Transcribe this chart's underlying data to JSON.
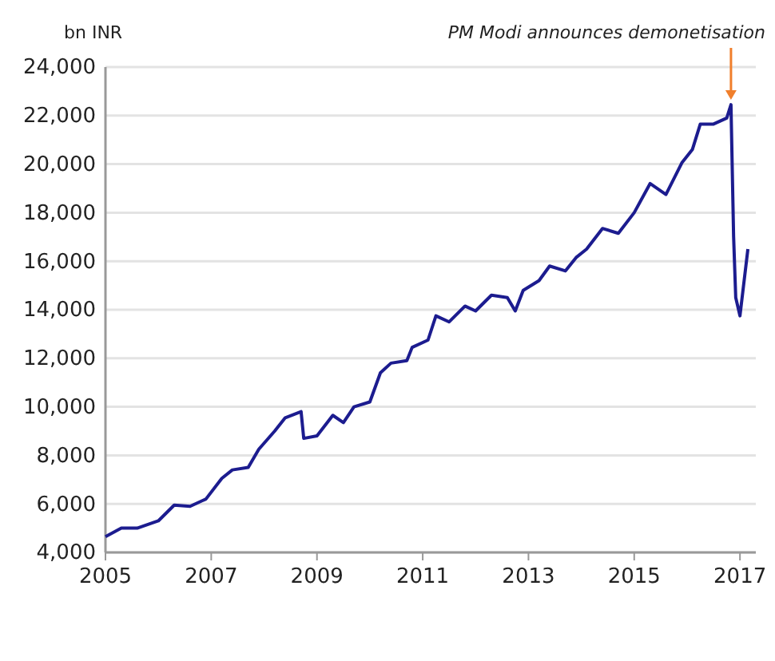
{
  "chart_data": {
    "type": "line",
    "ylabel": "bn INR",
    "annotations": [
      {
        "text": "PM Modi announces demonetisation",
        "x": 2016.83,
        "y": 22450
      }
    ],
    "x": [
      2005.0,
      2005.3,
      2005.6,
      2006.0,
      2006.3,
      2006.6,
      2006.9,
      2007.2,
      2007.4,
      2007.7,
      2007.9,
      2008.2,
      2008.4,
      2008.7,
      2008.75,
      2009.0,
      2009.3,
      2009.5,
      2009.7,
      2010.0,
      2010.2,
      2010.4,
      2010.7,
      2010.8,
      2011.1,
      2011.25,
      2011.5,
      2011.8,
      2012.0,
      2012.3,
      2012.6,
      2012.75,
      2012.9,
      2013.2,
      2013.4,
      2013.7,
      2013.9,
      2014.1,
      2014.4,
      2014.7,
      2015.0,
      2015.3,
      2015.6,
      2015.9,
      2016.1,
      2016.25,
      2016.5,
      2016.75,
      2016.83,
      2016.88,
      2016.92,
      2017.0,
      2017.15
    ],
    "series": [
      {
        "color": "#1c1c8f",
        "values": [
          4650,
          5000,
          5000,
          5300,
          5950,
          5900,
          6200,
          7050,
          7400,
          7500,
          8250,
          9000,
          9550,
          9800,
          8700,
          8800,
          9650,
          9350,
          10000,
          10200,
          11400,
          11800,
          11900,
          12450,
          12750,
          13750,
          13500,
          14150,
          13950,
          14600,
          14500,
          13950,
          14800,
          15200,
          15800,
          15600,
          16150,
          16500,
          17350,
          17150,
          18000,
          19200,
          18750,
          20050,
          20600,
          21650,
          21650,
          21900,
          22450,
          17000,
          14500,
          13750,
          16500
        ]
      }
    ],
    "xlim": [
      2005,
      2017.3
    ],
    "xticks": [
      2005,
      2007,
      2009,
      2011,
      2013,
      2015,
      2017
    ],
    "ylim": [
      4000,
      24000
    ],
    "yticks": [
      {
        "value": 4000,
        "label": "4,000"
      },
      {
        "value": 6000,
        "label": "6,000"
      },
      {
        "value": 8000,
        "label": "8,000"
      },
      {
        "value": 10000,
        "label": "10,000"
      },
      {
        "value": 12000,
        "label": "12,000"
      },
      {
        "value": 14000,
        "label": "14,000"
      },
      {
        "value": 16000,
        "label": "16,000"
      },
      {
        "value": 18000,
        "label": "18,000"
      },
      {
        "value": 20000,
        "label": "20,000"
      },
      {
        "value": 22000,
        "label": "22,000"
      },
      {
        "value": 24000,
        "label": "24,000"
      }
    ],
    "grid": "y",
    "marker": "none",
    "line_style": "solid"
  }
}
